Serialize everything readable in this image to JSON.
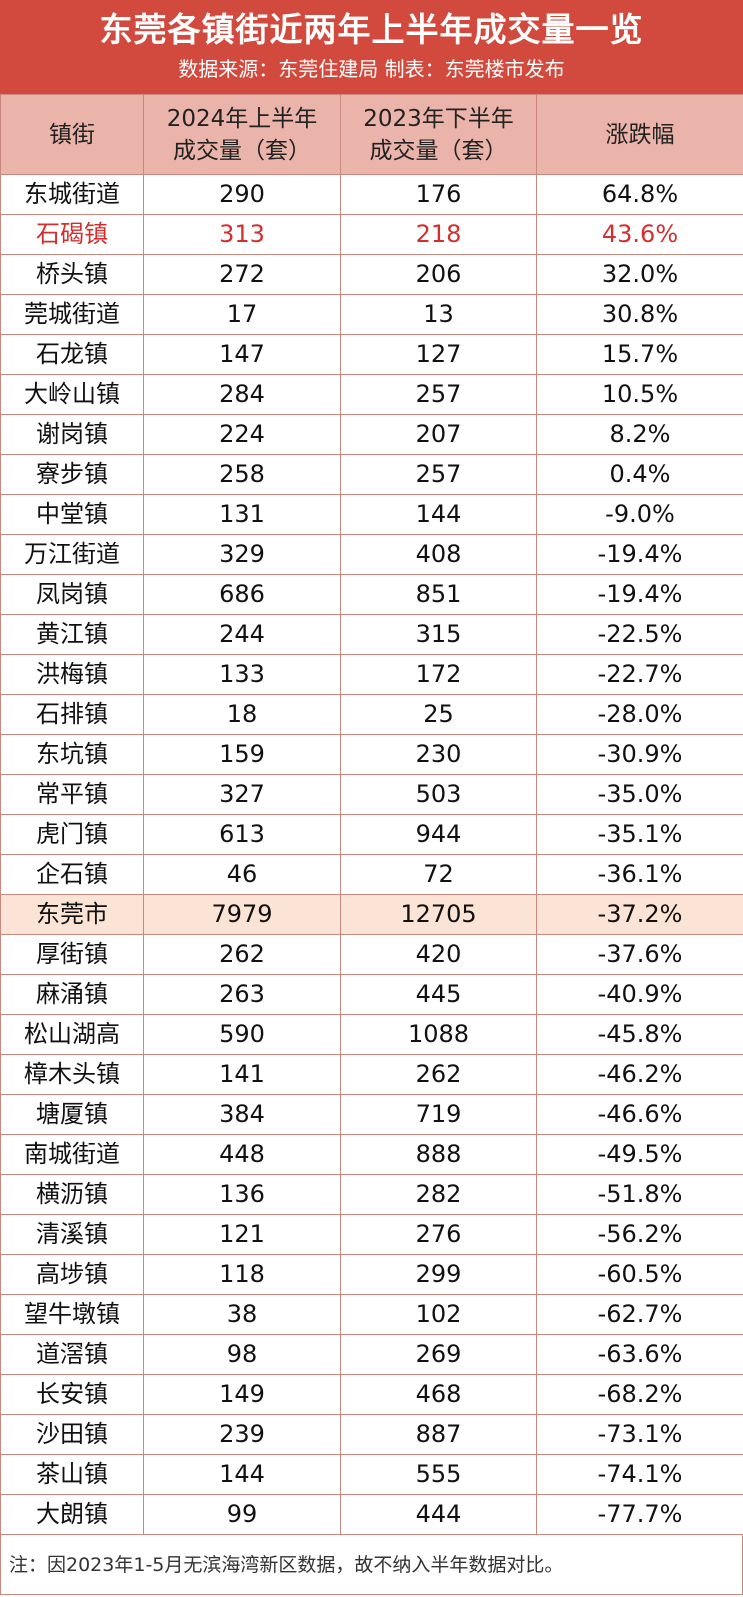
{
  "header": {
    "title": "东莞各镇街近两年上半年成交量一览",
    "subtitle": "数据来源：东莞住建局  制表：东莞楼市发布"
  },
  "table": {
    "columns": [
      [
        "镇街"
      ],
      [
        "2024年上半年",
        "成交量（套）"
      ],
      [
        "2023年下半年",
        "成交量（套）"
      ],
      [
        "涨跌幅"
      ]
    ],
    "rows": [
      [
        "东城街道",
        "290",
        "176",
        "64.8%"
      ],
      [
        "石碣镇",
        "313",
        "218",
        "43.6%"
      ],
      [
        "桥头镇",
        "272",
        "206",
        "32.0%"
      ],
      [
        "莞城街道",
        "17",
        "13",
        "30.8%"
      ],
      [
        "石龙镇",
        "147",
        "127",
        "15.7%"
      ],
      [
        "大岭山镇",
        "284",
        "257",
        "10.5%"
      ],
      [
        "谢岗镇",
        "224",
        "207",
        "8.2%"
      ],
      [
        "寮步镇",
        "258",
        "257",
        "0.4%"
      ],
      [
        "中堂镇",
        "131",
        "144",
        "-9.0%"
      ],
      [
        "万江街道",
        "329",
        "408",
        "-19.4%"
      ],
      [
        "凤岗镇",
        "686",
        "851",
        "-19.4%"
      ],
      [
        "黄江镇",
        "244",
        "315",
        "-22.5%"
      ],
      [
        "洪梅镇",
        "133",
        "172",
        "-22.7%"
      ],
      [
        "石排镇",
        "18",
        "25",
        "-28.0%"
      ],
      [
        "东坑镇",
        "159",
        "230",
        "-30.9%"
      ],
      [
        "常平镇",
        "327",
        "503",
        "-35.0%"
      ],
      [
        "虎门镇",
        "613",
        "944",
        "-35.1%"
      ],
      [
        "企石镇",
        "46",
        "72",
        "-36.1%"
      ],
      [
        "东莞市",
        "7979",
        "12705",
        "-37.2%"
      ],
      [
        "厚街镇",
        "262",
        "420",
        "-37.6%"
      ],
      [
        "麻涌镇",
        "263",
        "445",
        "-40.9%"
      ],
      [
        "松山湖高",
        "590",
        "1088",
        "-45.8%"
      ],
      [
        "樟木头镇",
        "141",
        "262",
        "-46.2%"
      ],
      [
        "塘厦镇",
        "384",
        "719",
        "-46.6%"
      ],
      [
        "南城街道",
        "448",
        "888",
        "-49.5%"
      ],
      [
        "横沥镇",
        "136",
        "282",
        "-51.8%"
      ],
      [
        "清溪镇",
        "121",
        "276",
        "-56.2%"
      ],
      [
        "高埗镇",
        "118",
        "299",
        "-60.5%"
      ],
      [
        "望牛墩镇",
        "38",
        "102",
        "-62.7%"
      ],
      [
        "道滘镇",
        "98",
        "269",
        "-63.6%"
      ],
      [
        "长安镇",
        "149",
        "468",
        "-68.2%"
      ],
      [
        "沙田镇",
        "239",
        "887",
        "-73.1%"
      ],
      [
        "茶山镇",
        "144",
        "555",
        "-74.1%"
      ],
      [
        "大朗镇",
        "99",
        "444",
        "-77.7%"
      ]
    ],
    "highlight_row_index": 1,
    "citywide_row_index": 18
  },
  "note": "注：因2023年1-5月无滨海湾新区数据，故不纳入半年数据对比。",
  "colors": {
    "header_bg": "#d24a3d",
    "column_header_bg": "#eab4aa",
    "highlight_text": "#d42f2f",
    "citywide_row_bg": "#fbe3d6"
  }
}
